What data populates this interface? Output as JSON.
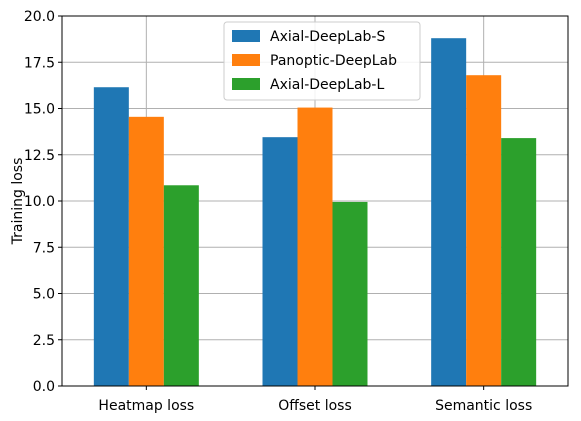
{
  "chart_data": {
    "type": "bar",
    "title": "",
    "xlabel": "",
    "ylabel": "Training loss",
    "ylim": [
      0,
      20
    ],
    "yticks": [
      0.0,
      2.5,
      5.0,
      7.5,
      10.0,
      12.5,
      15.0,
      17.5,
      20.0
    ],
    "ytick_labels": [
      "0.0",
      "2.5",
      "5.0",
      "7.5",
      "10.0",
      "12.5",
      "15.0",
      "17.5",
      "20.0"
    ],
    "categories": [
      "Heatmap loss",
      "Offset loss",
      "Semantic loss"
    ],
    "grid": true,
    "legend_position": "top-center",
    "series": [
      {
        "name": "Axial-DeepLab-S",
        "color": "#1f77b4",
        "values": [
          16.15,
          13.45,
          18.8
        ]
      },
      {
        "name": "Panoptic-DeepLab",
        "color": "#ff7f0e",
        "values": [
          14.55,
          15.05,
          16.8
        ]
      },
      {
        "name": "Axial-DeepLab-L",
        "color": "#2ca02c",
        "values": [
          10.85,
          9.95,
          13.4
        ]
      }
    ]
  }
}
